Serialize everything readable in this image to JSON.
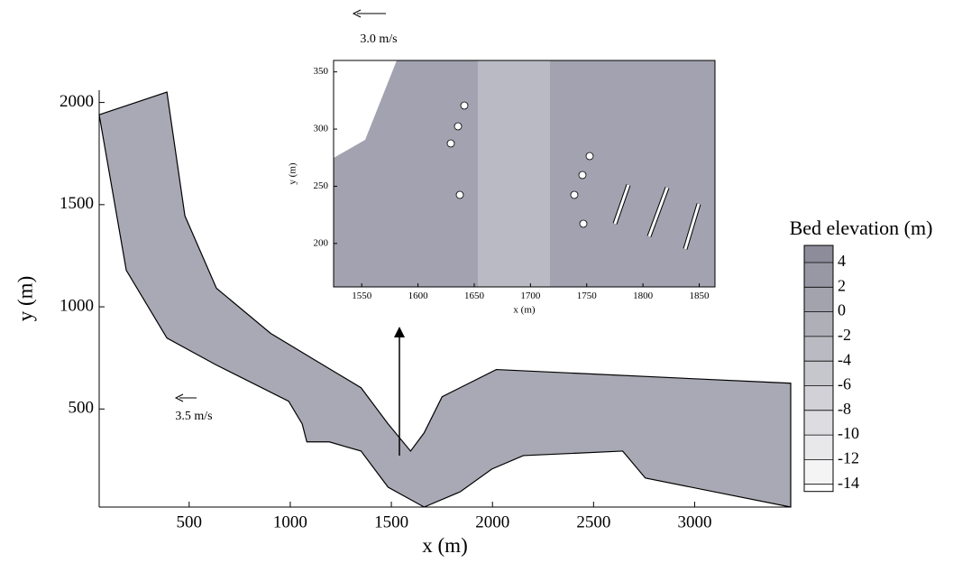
{
  "chart_data": [
    {
      "type": "area-map",
      "xlabel": "x (m)",
      "ylabel": "y (m)",
      "xlim": [
        55,
        3475
      ],
      "ylim": [
        20,
        2060
      ],
      "xticks": [
        500,
        1000,
        1500,
        2000,
        2500,
        3000
      ],
      "yticks": [
        500,
        1000,
        1500,
        2000
      ],
      "boundary": {
        "x": [
          55,
          390,
          479,
          635,
          903,
          1126,
          1350,
          1484,
          1595,
          1662,
          1751,
          2019,
          3475,
          3475,
          2756,
          2644,
          2153,
          1997,
          1841,
          1662,
          1484,
          1350,
          1193,
          1082,
          1059,
          992,
          635,
          390,
          189
        ],
        "y": [
          1940,
          2051,
          1445,
          1091,
          870,
          737,
          604,
          427,
          294,
          383,
          560,
          693,
          626,
          20,
          162,
          294,
          272,
          206,
          95,
          20,
          117,
          294,
          339,
          339,
          427,
          538,
          715,
          847,
          1179
        ]
      },
      "color": "#a9a9b5",
      "reference_vector": "3.5 m/s"
    },
    {
      "type": "area-map",
      "xlabel": "x (m)",
      "ylabel": "y (m)",
      "xlim": [
        1525,
        1864
      ],
      "ylim": [
        162,
        360
      ],
      "xticks": [
        1550,
        1600,
        1650,
        1700,
        1750,
        1800,
        1850
      ],
      "yticks": [
        200,
        250,
        300,
        350
      ],
      "color": "#a2a2b0",
      "reference_vector": "3.0 m/s"
    },
    {
      "type": "colorbar",
      "title": "Bed elevation (m)",
      "ticks": [
        4,
        2,
        0,
        -2,
        -4,
        -6,
        -8,
        -10,
        -12,
        -14
      ],
      "colors": [
        "#8c8c9a",
        "#ffffff"
      ]
    }
  ]
}
